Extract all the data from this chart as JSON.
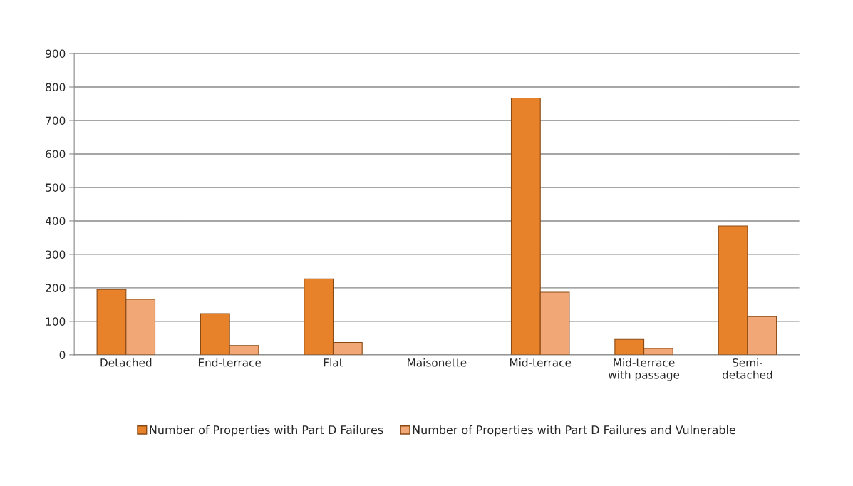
{
  "chart_data": {
    "type": "bar",
    "categories": [
      "Detached",
      "End-terrace",
      "Flat",
      "Maisonette",
      "Mid-terrace",
      "Mid-terrace\nwith passage",
      "Semi-\ndetached"
    ],
    "series": [
      {
        "name": "Number of Properties with Part D Failures",
        "color": "#e8822a",
        "values": [
          195,
          123,
          227,
          null,
          767,
          46,
          385
        ]
      },
      {
        "name": "Number of Properties with Part D Failures and Vulnerable",
        "color": "#f2a777",
        "values": [
          166,
          28,
          37,
          null,
          187,
          19,
          114
        ]
      }
    ],
    "ylim": [
      0,
      900
    ],
    "yticks": [
      0,
      100,
      200,
      300,
      400,
      500,
      600,
      700,
      800,
      900
    ],
    "grid": "y",
    "legend": "bottom"
  }
}
